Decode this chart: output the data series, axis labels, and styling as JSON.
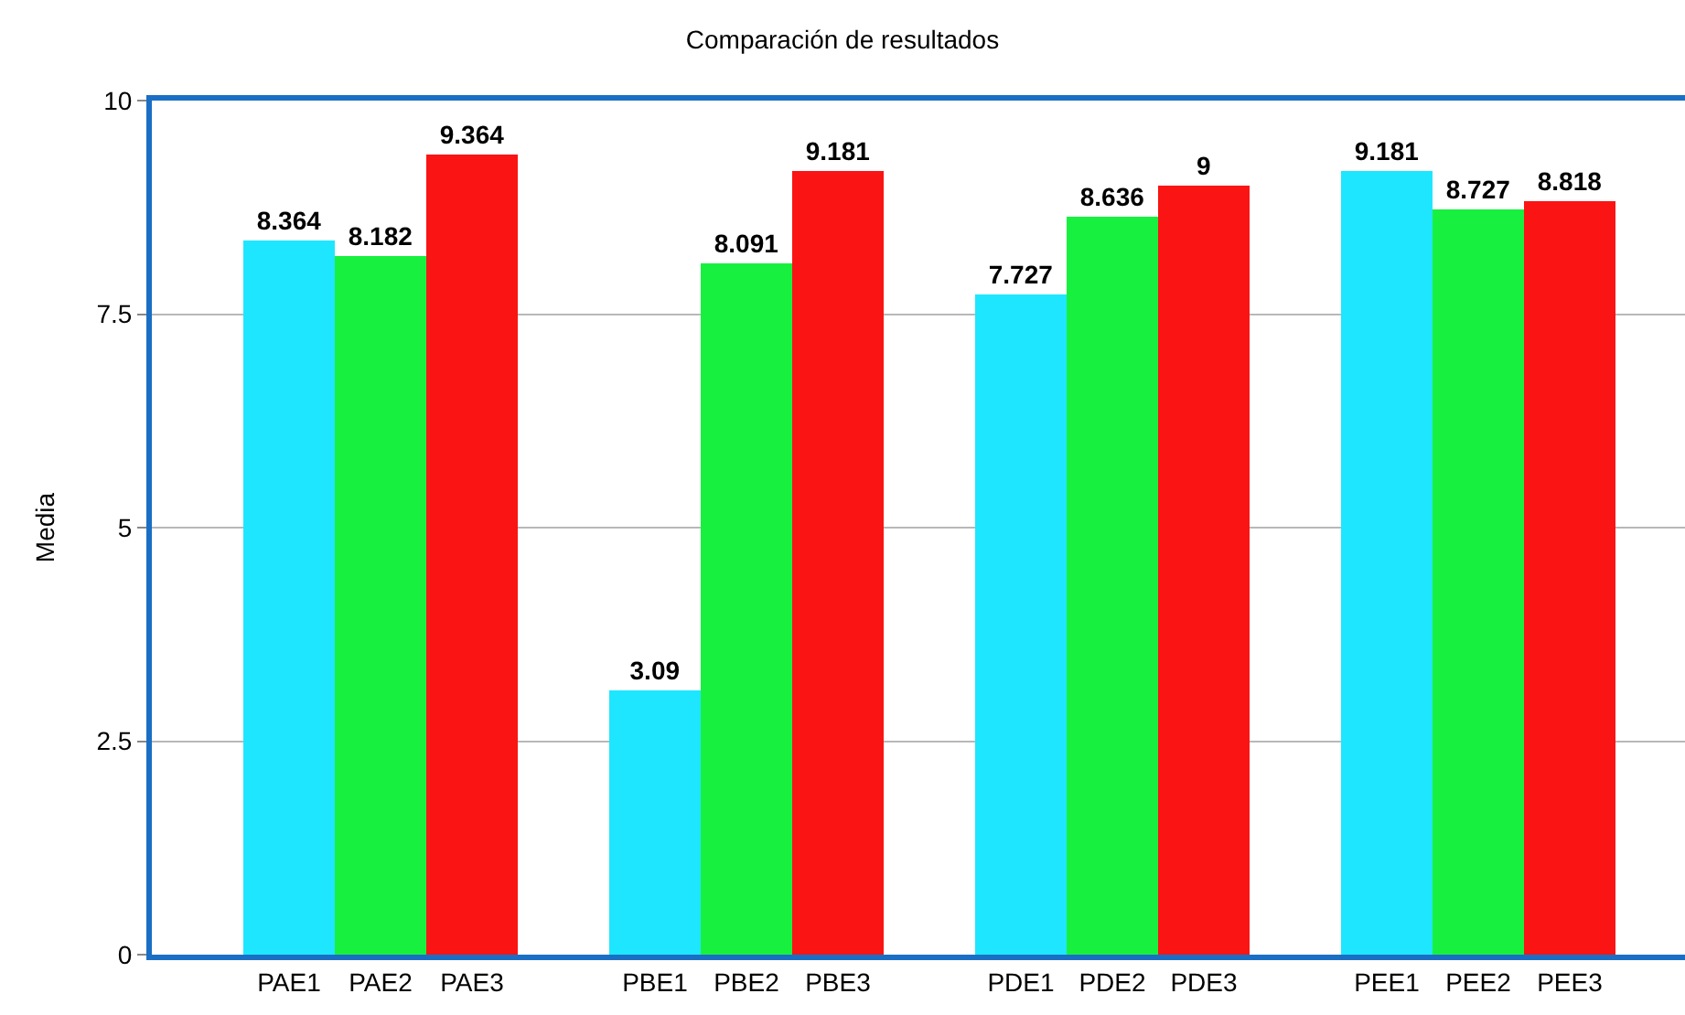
{
  "chart_data": {
    "type": "bar",
    "title": "Comparación de resultados",
    "ylabel": "Media",
    "categories": [
      null,
      "PAE1",
      "PAE2",
      "PAE3",
      null,
      "PBE1",
      "PBE2",
      "PBE3",
      null,
      "PDE1",
      "PDE2",
      "PDE3",
      null,
      "PEE1",
      "PEE2",
      "PEE3",
      null
    ],
    "values": [
      null,
      8.364,
      8.182,
      9.364,
      null,
      3.09,
      8.091,
      9.181,
      null,
      7.727,
      8.636,
      9,
      null,
      9.181,
      8.727,
      8.818,
      null
    ],
    "colors": [
      "#1ee6ff",
      "#1ee6ff",
      "#18f040",
      "#fa1414",
      "#1ee6ff",
      "#1ee6ff",
      "#18f040",
      "#fa1414",
      "#1ee6ff",
      "#1ee6ff",
      "#18f040",
      "#fa1414",
      "#1ee6ff",
      "#1ee6ff",
      "#18f040",
      "#fa1414",
      "#1ee6ff"
    ],
    "ylim": [
      0,
      10
    ],
    "yticks": [
      0,
      2.5,
      5,
      7.5,
      10
    ],
    "grid": "y",
    "data_labels": true
  }
}
